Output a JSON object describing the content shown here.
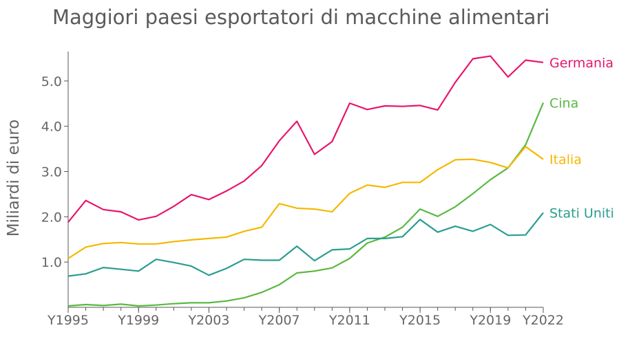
{
  "chart_data": {
    "type": "line",
    "title": "Maggiori paesi esportatori di macchine alimentari",
    "ylabel": "Miliardi di euro",
    "xlabel": "",
    "x": [
      1995,
      1996,
      1997,
      1998,
      1999,
      2000,
      2001,
      2002,
      2003,
      2004,
      2005,
      2006,
      2007,
      2008,
      2009,
      2010,
      2011,
      2012,
      2013,
      2014,
      2015,
      2016,
      2017,
      2018,
      2019,
      2020,
      2021,
      2022
    ],
    "x_tick_values": [
      1995,
      1999,
      2003,
      2007,
      2011,
      2015,
      2019,
      2022
    ],
    "x_tick_labels": [
      "Y1995",
      "Y1999",
      "Y2003",
      "Y2007",
      "Y2011",
      "Y2015",
      "Y2019",
      "Y2022"
    ],
    "y_ticks": [
      1.0,
      2.0,
      3.0,
      4.0,
      5.0
    ],
    "y_tick_labels": [
      "1.0",
      "2.0",
      "3.0",
      "4.0",
      "5.0"
    ],
    "ylim": [
      0,
      5.65
    ],
    "xlim": [
      1995,
      2022
    ],
    "grid": false,
    "legend": "inline labels at line ends",
    "series": [
      {
        "name": "Germania",
        "color": "#e8156b",
        "values": [
          1.88,
          2.36,
          2.16,
          2.11,
          1.93,
          2.01,
          2.23,
          2.49,
          2.38,
          2.57,
          2.79,
          3.13,
          3.68,
          4.11,
          3.38,
          3.66,
          4.51,
          4.37,
          4.45,
          4.44,
          4.46,
          4.36,
          4.97,
          5.49,
          5.55,
          5.09,
          5.46,
          5.41
        ]
      },
      {
        "name": "Cina",
        "color": "#59b840",
        "values": [
          0.03,
          0.06,
          0.04,
          0.07,
          0.03,
          0.05,
          0.08,
          0.1,
          0.1,
          0.14,
          0.21,
          0.33,
          0.5,
          0.76,
          0.8,
          0.87,
          1.08,
          1.42,
          1.55,
          1.77,
          2.17,
          2.01,
          2.22,
          2.51,
          2.82,
          3.08,
          3.59,
          4.52
        ]
      },
      {
        "name": "Italia",
        "color": "#f5b800",
        "values": [
          1.08,
          1.33,
          1.41,
          1.43,
          1.4,
          1.4,
          1.45,
          1.49,
          1.52,
          1.55,
          1.68,
          1.77,
          2.29,
          2.19,
          2.17,
          2.11,
          2.52,
          2.7,
          2.65,
          2.76,
          2.76,
          3.04,
          3.26,
          3.27,
          3.2,
          3.08,
          3.55,
          3.27
        ]
      },
      {
        "name": "Stati Uniti",
        "color": "#2a9d8f",
        "values": [
          0.69,
          0.74,
          0.88,
          0.84,
          0.8,
          1.06,
          0.99,
          0.91,
          0.71,
          0.86,
          1.06,
          1.04,
          1.04,
          1.35,
          1.03,
          1.27,
          1.29,
          1.52,
          1.52,
          1.56,
          1.94,
          1.66,
          1.79,
          1.68,
          1.83,
          1.59,
          1.6,
          2.09
        ]
      }
    ]
  }
}
